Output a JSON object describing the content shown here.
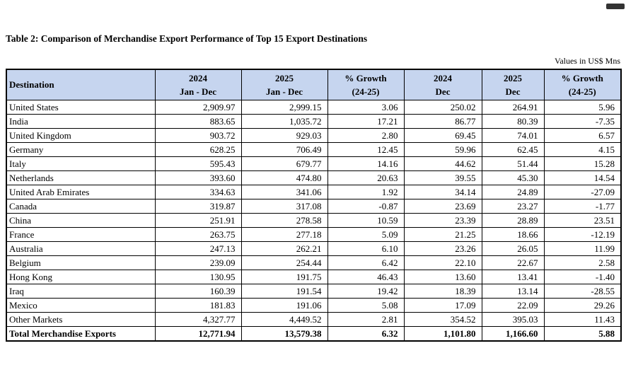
{
  "document": {
    "title": "Table 2: Comparison of Merchandise Export Performance of Top 15 Export Destinations",
    "units_note": "Values in US$ Mns"
  },
  "table": {
    "header_bg": "#c6d5ef",
    "border_color": "#000000",
    "headers": [
      {
        "line1": "Destination",
        "line2": ""
      },
      {
        "line1": "2024",
        "line2": "Jan - Dec"
      },
      {
        "line1": "2025",
        "line2": "Jan - Dec"
      },
      {
        "line1": "% Growth",
        "line2": "(24-25)"
      },
      {
        "line1": "2024",
        "line2": "Dec"
      },
      {
        "line1": "2025",
        "line2": "Dec"
      },
      {
        "line1": "% Growth",
        "line2": "(24-25)"
      }
    ],
    "rows": [
      [
        "United States",
        "2,909.97",
        "2,999.15",
        "3.06",
        "250.02",
        "264.91",
        "5.96"
      ],
      [
        "India",
        "883.65",
        "1,035.72",
        "17.21",
        "86.77",
        "80.39",
        "-7.35"
      ],
      [
        "United Kingdom",
        "903.72",
        "929.03",
        "2.80",
        "69.45",
        "74.01",
        "6.57"
      ],
      [
        "Germany",
        "628.25",
        "706.49",
        "12.45",
        "59.96",
        "62.45",
        "4.15"
      ],
      [
        "Italy",
        "595.43",
        "679.77",
        "14.16",
        "44.62",
        "51.44",
        "15.28"
      ],
      [
        "Netherlands",
        "393.60",
        "474.80",
        "20.63",
        "39.55",
        "45.30",
        "14.54"
      ],
      [
        "United Arab Emirates",
        "334.63",
        "341.06",
        "1.92",
        "34.14",
        "24.89",
        "-27.09"
      ],
      [
        "Canada",
        "319.87",
        "317.08",
        "-0.87",
        "23.69",
        "23.27",
        "-1.77"
      ],
      [
        "China",
        "251.91",
        "278.58",
        "10.59",
        "23.39",
        "28.89",
        "23.51"
      ],
      [
        "France",
        "263.75",
        "277.18",
        "5.09",
        "21.25",
        "18.66",
        "-12.19"
      ],
      [
        "Australia",
        "247.13",
        "262.21",
        "6.10",
        "23.26",
        "26.05",
        "11.99"
      ],
      [
        "Belgium",
        "239.09",
        "254.44",
        "6.42",
        "22.10",
        "22.67",
        "2.58"
      ],
      [
        "Hong Kong",
        "130.95",
        "191.75",
        "46.43",
        "13.60",
        "13.41",
        "-1.40"
      ],
      [
        "Iraq",
        "160.39",
        "191.54",
        "19.42",
        "18.39",
        "13.14",
        "-28.55"
      ],
      [
        "Mexico",
        "181.83",
        "191.06",
        "5.08",
        "17.09",
        "22.09",
        "29.26"
      ],
      [
        "Other Markets",
        "4,327.77",
        "4,449.52",
        "2.81",
        "354.52",
        "395.03",
        "11.43"
      ]
    ],
    "total_row": [
      "Total Merchandise Exports",
      "12,771.94",
      "13,579.38",
      "6.32",
      "1,101.80",
      "1,166.60",
      "5.88"
    ]
  }
}
